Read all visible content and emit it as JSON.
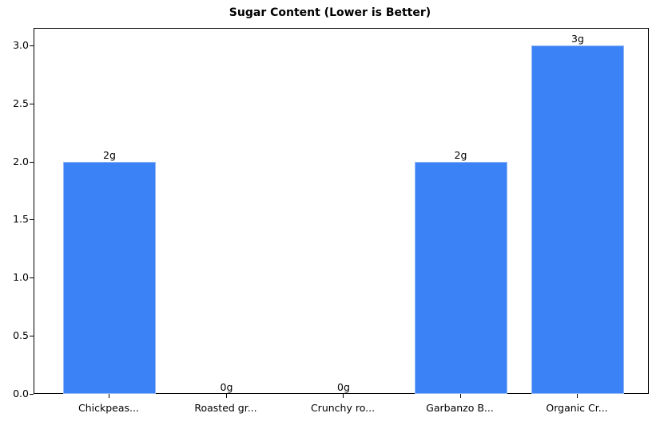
{
  "chart_data": {
    "type": "bar",
    "title": "Sugar Content (Lower is Better)",
    "xlabel": "",
    "ylabel": "",
    "categories": [
      "Chickpeas...",
      "Roasted gr...",
      "Crunchy ro...",
      "Garbanzo B...",
      "Organic Cr..."
    ],
    "values": [
      2,
      0,
      0,
      2,
      3
    ],
    "data_labels": [
      "2g",
      "0g",
      "0g",
      "2g",
      "3g"
    ],
    "yticks": [
      "0.0",
      "0.5",
      "1.0",
      "1.5",
      "2.0",
      "2.5",
      "3.0"
    ],
    "ylim": [
      0,
      3.15
    ],
    "grid": false,
    "legend": null,
    "bar_color": "#3b82f6"
  }
}
